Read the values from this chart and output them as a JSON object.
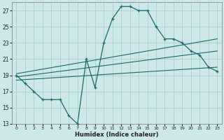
{
  "xlabel": "Humidex (Indice chaleur)",
  "bg_color": "#cce8e8",
  "grid_color": "#aacfcf",
  "line_color": "#1a6b6b",
  "xlim": [
    -0.5,
    23.5
  ],
  "ylim": [
    13,
    28
  ],
  "yticks": [
    13,
    15,
    17,
    19,
    21,
    23,
    25,
    27
  ],
  "xticks": [
    0,
    1,
    2,
    3,
    4,
    5,
    6,
    7,
    8,
    9,
    10,
    11,
    12,
    13,
    14,
    15,
    16,
    17,
    18,
    19,
    20,
    21,
    22,
    23
  ],
  "main_x": [
    0,
    1,
    2,
    3,
    4,
    5,
    6,
    7,
    8,
    9,
    10,
    11,
    12,
    13,
    14,
    15,
    16,
    17,
    18,
    19,
    20,
    21,
    22,
    23
  ],
  "main_y": [
    19,
    18,
    17,
    16,
    16,
    16,
    14,
    13,
    21,
    17.5,
    23,
    26,
    27.5,
    27.5,
    27,
    27,
    25,
    23.5,
    23.5,
    23,
    22,
    21.5,
    20,
    19.5
  ],
  "line1_x": [
    0,
    23
  ],
  "line1_y": [
    19.2,
    23.5
  ],
  "line2_x": [
    0,
    23
  ],
  "line2_y": [
    18.8,
    22.0
  ],
  "line3_x": [
    0,
    23
  ],
  "line3_y": [
    18.4,
    20.0
  ]
}
